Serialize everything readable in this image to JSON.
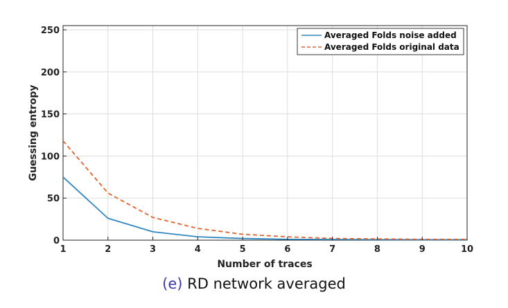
{
  "chart_data": {
    "type": "line",
    "xlabel": "Number of traces",
    "ylabel": "Guessing entropy",
    "xlim": [
      1,
      10
    ],
    "ylim": [
      0,
      255
    ],
    "x_ticks": [
      1,
      2,
      3,
      4,
      5,
      6,
      7,
      8,
      9,
      10
    ],
    "y_ticks": [
      0,
      50,
      100,
      150,
      200,
      250
    ],
    "grid": true,
    "legend_position": "top-right",
    "x": [
      1,
      2,
      3,
      4,
      5,
      6,
      7,
      8,
      9,
      10
    ],
    "series": [
      {
        "name": "Averaged Folds noise added",
        "values": [
          75,
          26,
          10,
          4,
          2,
          1,
          0.8,
          0.6,
          0.5,
          0.5
        ],
        "color": "#2e86c1",
        "style": "solid"
      },
      {
        "name": "Averaged Folds original data",
        "values": [
          118,
          56,
          27,
          14,
          7,
          4,
          2,
          1.5,
          1,
          1
        ],
        "color": "#e0622a",
        "style": "dashed"
      }
    ]
  },
  "caption": {
    "tag": "(e)",
    "text": "RD network averaged"
  }
}
